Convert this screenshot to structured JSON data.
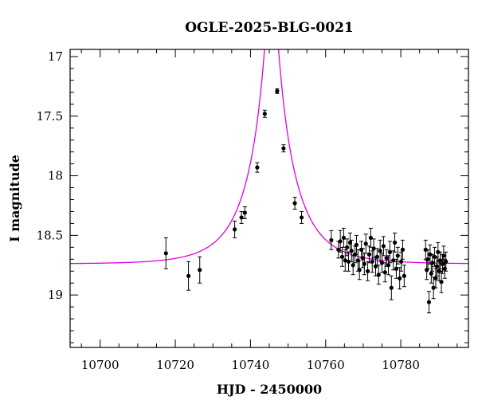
{
  "chart_data": {
    "type": "scatter",
    "title": "OGLE-2025-BLG-0021",
    "xlabel": "HJD - 2450000",
    "ylabel": "I magnitude",
    "xlim": [
      10692,
      10798
    ],
    "ylim": [
      19.44,
      16.94
    ],
    "y_inverted": true,
    "x_ticks": [
      10700,
      10720,
      10740,
      10760,
      10780
    ],
    "x_tick_labels": [
      "10700",
      "10720",
      "10740",
      "10760",
      "10780"
    ],
    "y_ticks": [
      17,
      17.5,
      18,
      18.5,
      19
    ],
    "y_tick_labels": [
      "17",
      "17.5",
      "18",
      "18.5",
      "19"
    ],
    "grid": false,
    "model": {
      "name": "",
      "color": "#e000e0",
      "type": "PSPL",
      "t0": 10745.6,
      "u0": 0.105,
      "tE": 11.5,
      "baseline": 18.74,
      "blend_fraction": 1.0
    },
    "series": [
      {
        "name": "",
        "color": "#000000",
        "points": [
          [
            10717.5,
            18.65,
            0.13
          ],
          [
            10723.5,
            18.84,
            0.12
          ],
          [
            10726.5,
            18.79,
            0.11
          ],
          [
            10735.8,
            18.45,
            0.07
          ],
          [
            10737.6,
            18.35,
            0.05
          ],
          [
            10738.5,
            18.31,
            0.05
          ],
          [
            10741.8,
            17.93,
            0.04
          ],
          [
            10743.8,
            17.48,
            0.03
          ],
          [
            10747.1,
            17.29,
            0.02
          ],
          [
            10748.8,
            17.77,
            0.03
          ],
          [
            10751.8,
            18.23,
            0.05
          ],
          [
            10753.6,
            18.35,
            0.05
          ],
          [
            10761.5,
            18.54,
            0.08
          ],
          [
            10763.4,
            18.62,
            0.07
          ],
          [
            10763.9,
            18.55,
            0.09
          ],
          [
            10764.4,
            18.68,
            0.08
          ],
          [
            10764.8,
            18.52,
            0.08
          ],
          [
            10765.2,
            18.71,
            0.09
          ],
          [
            10765.7,
            18.6,
            0.07
          ],
          [
            10766.1,
            18.72,
            0.08
          ],
          [
            10766.5,
            18.56,
            0.08
          ],
          [
            10766.9,
            18.63,
            0.09
          ],
          [
            10767.3,
            18.75,
            0.08
          ],
          [
            10767.8,
            18.66,
            0.07
          ],
          [
            10768.2,
            18.58,
            0.08
          ],
          [
            10768.6,
            18.71,
            0.09
          ],
          [
            10769.0,
            18.79,
            0.08
          ],
          [
            10769.5,
            18.62,
            0.07
          ],
          [
            10769.9,
            18.69,
            0.08
          ],
          [
            10770.3,
            18.74,
            0.09
          ],
          [
            10770.7,
            18.57,
            0.08
          ],
          [
            10771.2,
            18.8,
            0.08
          ],
          [
            10771.6,
            18.66,
            0.07
          ],
          [
            10772.0,
            18.52,
            0.08
          ],
          [
            10772.4,
            18.72,
            0.09
          ],
          [
            10772.8,
            18.61,
            0.08
          ],
          [
            10773.3,
            18.76,
            0.08
          ],
          [
            10773.7,
            18.68,
            0.07
          ],
          [
            10774.1,
            18.83,
            0.08
          ],
          [
            10774.5,
            18.63,
            0.09
          ],
          [
            10775.0,
            18.73,
            0.08
          ],
          [
            10775.4,
            18.59,
            0.08
          ],
          [
            10775.8,
            18.81,
            0.08
          ],
          [
            10776.2,
            18.69,
            0.07
          ],
          [
            10776.7,
            18.75,
            0.08
          ],
          [
            10777.1,
            18.64,
            0.09
          ],
          [
            10777.5,
            18.94,
            0.1
          ],
          [
            10778.0,
            18.71,
            0.08
          ],
          [
            10778.4,
            18.56,
            0.08
          ],
          [
            10778.8,
            18.78,
            0.08
          ],
          [
            10779.2,
            18.67,
            0.07
          ],
          [
            10779.7,
            18.86,
            0.09
          ],
          [
            10780.1,
            18.72,
            0.08
          ],
          [
            10780.5,
            18.62,
            0.08
          ],
          [
            10780.9,
            18.84,
            0.09
          ],
          [
            10786.6,
            18.62,
            0.08
          ],
          [
            10786.9,
            18.79,
            0.08
          ],
          [
            10787.2,
            18.7,
            0.08
          ],
          [
            10787.5,
            19.06,
            0.09
          ],
          [
            10787.8,
            18.66,
            0.08
          ],
          [
            10788.1,
            18.82,
            0.08
          ],
          [
            10788.4,
            18.73,
            0.07
          ],
          [
            10788.7,
            18.94,
            0.09
          ],
          [
            10789.0,
            18.68,
            0.08
          ],
          [
            10789.3,
            18.86,
            0.08
          ],
          [
            10789.6,
            18.76,
            0.08
          ],
          [
            10789.9,
            18.64,
            0.08
          ],
          [
            10790.2,
            18.8,
            0.08
          ],
          [
            10790.5,
            18.71,
            0.07
          ],
          [
            10790.8,
            18.89,
            0.09
          ],
          [
            10791.1,
            18.74,
            0.08
          ],
          [
            10791.4,
            18.67,
            0.08
          ],
          [
            10791.7,
            18.78,
            0.08
          ],
          [
            10792.0,
            18.72,
            0.08
          ]
        ]
      }
    ]
  }
}
